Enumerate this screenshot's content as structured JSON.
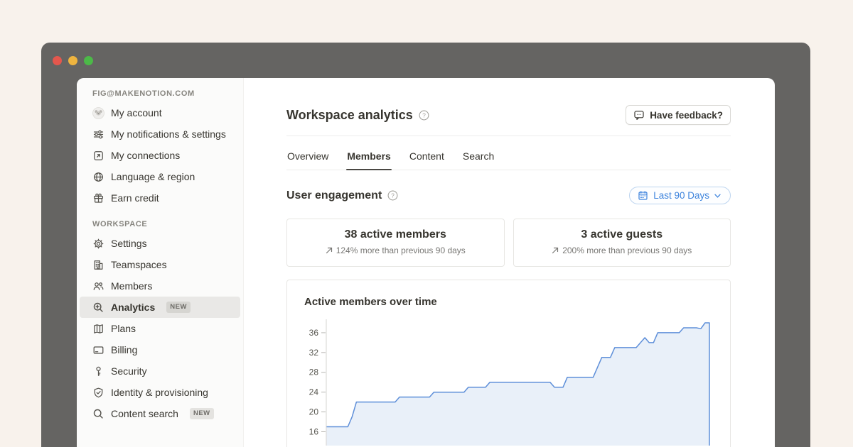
{
  "window": {
    "traffic_lights": {
      "close": "#e4574d",
      "minimize": "#eeb43f",
      "zoom": "#4cb948"
    }
  },
  "sidebar": {
    "account_section_label": "FIG@MAKENOTION.COM",
    "account_items": [
      {
        "label": "My account",
        "icon": "avatar"
      },
      {
        "label": "My notifications & settings",
        "icon": "sliders-icon"
      },
      {
        "label": "My connections",
        "icon": "arrow-up-right-box-icon"
      },
      {
        "label": "Language & region",
        "icon": "globe-icon"
      },
      {
        "label": "Earn credit",
        "icon": "gift-icon"
      }
    ],
    "workspace_section_label": "WORKSPACE",
    "workspace_items": [
      {
        "label": "Settings",
        "icon": "gear-icon"
      },
      {
        "label": "Teamspaces",
        "icon": "building-icon"
      },
      {
        "label": "Members",
        "icon": "people-icon"
      },
      {
        "label": "Analytics",
        "icon": "zoom-plus-icon",
        "badge": "NEW",
        "active": true
      },
      {
        "label": "Plans",
        "icon": "map-icon"
      },
      {
        "label": "Billing",
        "icon": "credit-card-icon"
      },
      {
        "label": "Security",
        "icon": "key-icon"
      },
      {
        "label": "Identity & provisioning",
        "icon": "shield-check-icon"
      },
      {
        "label": "Content search",
        "icon": "search-icon",
        "badge": "NEW"
      }
    ]
  },
  "main": {
    "title": "Workspace analytics",
    "feedback_button_label": "Have feedback?",
    "tabs": [
      {
        "label": "Overview"
      },
      {
        "label": "Members",
        "active": true
      },
      {
        "label": "Content"
      },
      {
        "label": "Search"
      }
    ],
    "section_title": "User engagement",
    "date_filter_label": "Last 90 Days",
    "stat_cards": [
      {
        "value": "38 active members",
        "delta": "124% more than previous 90 days"
      },
      {
        "value": "3 active guests",
        "delta": "200% more than previous 90 days"
      }
    ]
  },
  "chart_data": {
    "type": "area",
    "title": "Active members over time",
    "xlabel": "",
    "ylabel": "",
    "x_description": "last 90 days, daily",
    "values": [
      17,
      17,
      17,
      17,
      17,
      17,
      19,
      22,
      22,
      22,
      22,
      22,
      22,
      22,
      22,
      22,
      22,
      23,
      23,
      23,
      23,
      23,
      23,
      23,
      23,
      24,
      24,
      24,
      24,
      24,
      24,
      24,
      24,
      25,
      25,
      25,
      25,
      25,
      26,
      26,
      26,
      26,
      26,
      26,
      26,
      26,
      26,
      26,
      26,
      26,
      26,
      26,
      26,
      25,
      25,
      25,
      27,
      27,
      27,
      27,
      27,
      27,
      27,
      29,
      31,
      31,
      31,
      33,
      33,
      33,
      33,
      33,
      33,
      34,
      35,
      34,
      34,
      36,
      36,
      36,
      36,
      36,
      36,
      37,
      37,
      37,
      37,
      36.8,
      38,
      38
    ],
    "yticks": [
      36,
      32,
      28,
      24,
      20,
      16
    ],
    "ylim": [
      13.2,
      39
    ],
    "grid": false,
    "legend": false
  },
  "colors": {
    "accent_blue": "#3e84dd",
    "chart_line": "#5e8fd9",
    "chart_fill": "#e9f0f9",
    "sidebar_selected": "#e9e8e6",
    "window_frame": "#656462",
    "page_background": "#f8f2ec"
  }
}
